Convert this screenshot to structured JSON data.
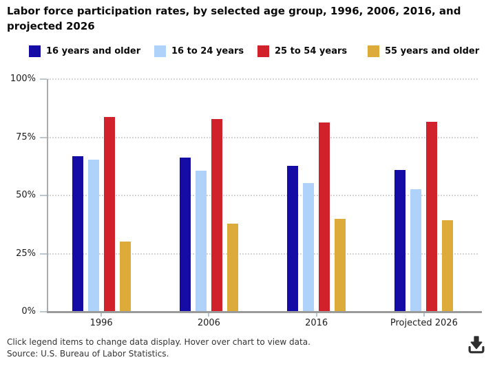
{
  "header": {
    "title_lines": [
      "Labor force participation rates, by selected age group, 1996, 2006, 2016, and",
      "projected 2026"
    ]
  },
  "chart_data": {
    "type": "bar",
    "title": "Labor force participation rates, by selected age group, 1996, 2006, 2016, and projected 2026",
    "categories": [
      "1996",
      "2006",
      "2016",
      "Projected 2026"
    ],
    "series": [
      {
        "name": "16 years and older",
        "color": "#150ca6",
        "values": [
          66.8,
          66.2,
          62.8,
          61.0
        ]
      },
      {
        "name": "16 to 24 years",
        "color": "#aed2f9",
        "values": [
          65.5,
          60.6,
          55.2,
          52.6
        ]
      },
      {
        "name": "25 to 54 years",
        "color": "#d1222b",
        "values": [
          83.8,
          82.9,
          81.3,
          81.6
        ]
      },
      {
        "name": "55 years and older",
        "color": "#dcab3a",
        "values": [
          30.3,
          38.0,
          40.0,
          39.3
        ]
      }
    ],
    "xlabel": "",
    "ylabel": "",
    "ylim": [
      0,
      100
    ],
    "y_ticks": [
      0,
      25,
      50,
      75,
      100
    ],
    "y_tick_labels": [
      "0%",
      "25%",
      "50%",
      "75%",
      "100%"
    ],
    "grid": "horizontal-dotted",
    "legend_position": "top"
  },
  "footer": {
    "note": "Click legend items to change data display. Hover over chart to view data.",
    "source": "Source: U.S. Bureau of Labor Statistics.",
    "download_icon": "download-icon"
  }
}
